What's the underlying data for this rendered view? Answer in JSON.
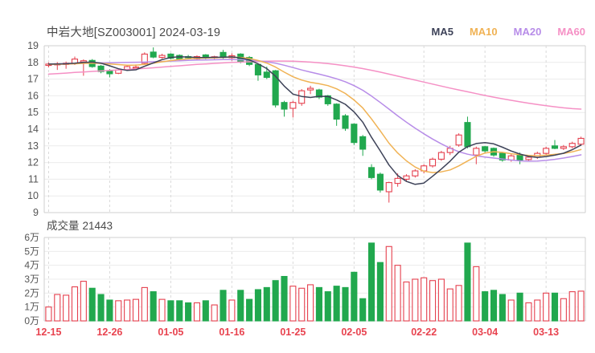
{
  "header": {
    "stock_title": "中岩大地[SZ003001]",
    "date": "2024-03-19"
  },
  "volume_panel": {
    "label": "成交量",
    "value": "21443"
  },
  "chart_data": {
    "type": "candlestick",
    "title": "中岩大地[SZ003001] 2024-03-19",
    "legend": [
      {
        "label": "MA5",
        "color": "#3d4258"
      },
      {
        "label": "MA10",
        "color": "#f0b254"
      },
      {
        "label": "MA20",
        "color": "#b78ce8"
      },
      {
        "label": "MA60",
        "color": "#f590c5"
      }
    ],
    "price_axis": {
      "min": 9,
      "max": 19,
      "tick_labels": [
        "19",
        "18",
        "17",
        "16",
        "15",
        "14",
        "13",
        "12",
        "11",
        "10",
        "9"
      ]
    },
    "volume_axis": {
      "max": 6,
      "tick_labels": [
        "6万",
        "5万",
        "4万",
        "3万",
        "2万",
        "1万",
        "0万"
      ]
    },
    "x_ticks": [
      {
        "index": 0,
        "label": "12-15"
      },
      {
        "index": 7,
        "label": "12-26"
      },
      {
        "index": 14,
        "label": "01-05"
      },
      {
        "index": 21,
        "label": "01-16"
      },
      {
        "index": 28,
        "label": "01-25"
      },
      {
        "index": 35,
        "label": "02-05"
      },
      {
        "index": 43,
        "label": "02-22"
      },
      {
        "index": 50,
        "label": "03-04"
      },
      {
        "index": 57,
        "label": "03-13"
      }
    ],
    "candles": [
      [
        17.82,
        18.0,
        17.7,
        17.9
      ],
      [
        17.86,
        18.02,
        17.55,
        17.92
      ],
      [
        17.88,
        18.05,
        17.62,
        17.95
      ],
      [
        17.92,
        18.35,
        17.85,
        18.2
      ],
      [
        18.02,
        18.18,
        17.2,
        18.1
      ],
      [
        18.12,
        18.2,
        17.68,
        17.75
      ],
      [
        17.78,
        17.85,
        17.35,
        17.45
      ],
      [
        17.5,
        17.6,
        17.1,
        17.32
      ],
      [
        17.35,
        17.65,
        17.3,
        17.55
      ],
      [
        17.58,
        17.85,
        17.5,
        17.75
      ],
      [
        17.7,
        17.88,
        17.6,
        17.72
      ],
      [
        17.95,
        18.6,
        17.9,
        18.5
      ],
      [
        18.62,
        18.9,
        18.25,
        18.32
      ],
      [
        18.3,
        18.52,
        18.22,
        18.42
      ],
      [
        18.5,
        18.55,
        18.18,
        18.25
      ],
      [
        18.42,
        18.48,
        18.1,
        18.2
      ],
      [
        18.35,
        18.45,
        18.18,
        18.28
      ],
      [
        18.22,
        18.42,
        18.15,
        18.35
      ],
      [
        18.45,
        18.5,
        18.2,
        18.28
      ],
      [
        18.28,
        18.4,
        18.2,
        18.34
      ],
      [
        18.6,
        18.75,
        18.22,
        18.3
      ],
      [
        18.28,
        18.55,
        18.1,
        18.4
      ],
      [
        18.5,
        18.55,
        17.95,
        18.05
      ],
      [
        18.3,
        18.38,
        17.78,
        17.88
      ],
      [
        17.88,
        17.95,
        16.9,
        17.25
      ],
      [
        17.42,
        17.75,
        17.0,
        17.1
      ],
      [
        17.5,
        17.55,
        15.3,
        15.45
      ],
      [
        15.6,
        15.7,
        14.75,
        15.2
      ],
      [
        15.25,
        15.7,
        14.7,
        15.6
      ],
      [
        15.55,
        16.4,
        15.4,
        16.3
      ],
      [
        16.35,
        16.6,
        16.1,
        16.45
      ],
      [
        16.35,
        16.42,
        15.8,
        15.92
      ],
      [
        16.0,
        16.05,
        15.4,
        15.52
      ],
      [
        15.5,
        15.55,
        14.2,
        14.6
      ],
      [
        14.8,
        14.9,
        13.9,
        14.05
      ],
      [
        14.3,
        14.35,
        13.05,
        13.2
      ],
      [
        13.55,
        13.65,
        12.4,
        12.8
      ],
      [
        11.7,
        11.9,
        11.0,
        11.1
      ],
      [
        11.3,
        11.4,
        10.2,
        10.35
      ],
      [
        10.25,
        10.85,
        9.6,
        10.8
      ],
      [
        10.75,
        11.35,
        10.55,
        11.05
      ],
      [
        11.0,
        11.3,
        10.85,
        11.2
      ],
      [
        11.2,
        11.6,
        11.1,
        11.5
      ],
      [
        11.5,
        11.9,
        11.35,
        11.8
      ],
      [
        11.8,
        12.3,
        11.7,
        12.2
      ],
      [
        12.2,
        12.7,
        12.1,
        12.6
      ],
      [
        12.6,
        13.0,
        12.45,
        12.85
      ],
      [
        13.05,
        13.75,
        12.95,
        13.65
      ],
      [
        14.4,
        14.75,
        12.85,
        12.95
      ],
      [
        12.45,
        12.95,
        11.9,
        12.85
      ],
      [
        12.95,
        13.0,
        12.6,
        12.7
      ],
      [
        12.85,
        12.9,
        12.35,
        12.45
      ],
      [
        12.55,
        12.6,
        12.05,
        12.15
      ],
      [
        12.15,
        12.5,
        12.05,
        12.4
      ],
      [
        12.45,
        12.6,
        11.9,
        12.15
      ],
      [
        12.18,
        12.4,
        12.08,
        12.32
      ],
      [
        12.32,
        12.65,
        12.22,
        12.55
      ],
      [
        12.55,
        12.95,
        12.45,
        12.85
      ],
      [
        13.0,
        13.35,
        12.8,
        12.85
      ],
      [
        12.85,
        13.05,
        12.75,
        12.95
      ],
      [
        12.95,
        13.25,
        12.85,
        13.15
      ],
      [
        13.1,
        13.55,
        13.0,
        13.45
      ]
    ],
    "volumes_wan": [
      1.0,
      1.9,
      1.85,
      2.45,
      2.85,
      2.35,
      1.9,
      1.5,
      1.45,
      1.5,
      1.55,
      2.4,
      2.1,
      1.55,
      1.45,
      1.45,
      1.3,
      1.3,
      1.45,
      1.15,
      2.2,
      1.5,
      2.2,
      1.55,
      2.25,
      2.4,
      2.9,
      3.2,
      2.5,
      2.35,
      2.6,
      2.4,
      2.1,
      2.5,
      2.4,
      3.5,
      1.6,
      5.6,
      4.2,
      5.35,
      4.0,
      2.8,
      3.0,
      3.1,
      2.9,
      3.0,
      2.3,
      2.55,
      5.6,
      3.9,
      2.1,
      2.2,
      1.9,
      1.5,
      2.0,
      1.3,
      1.5,
      2.0,
      2.0,
      1.6,
      2.1,
      2.14
    ],
    "ma5": [
      17.9,
      17.91,
      17.92,
      17.95,
      18.0,
      18.02,
      17.95,
      17.8,
      17.62,
      17.52,
      17.56,
      17.77,
      17.97,
      18.17,
      18.3,
      18.34,
      18.32,
      18.3,
      18.29,
      18.31,
      18.31,
      18.33,
      18.27,
      18.15,
      17.92,
      17.63,
      17.17,
      16.58,
      16.1,
      15.96,
      15.9,
      15.97,
      15.96,
      15.75,
      15.49,
      15.04,
      14.42,
      13.51,
      12.7,
      11.85,
      11.22,
      10.87,
      10.69,
      10.77,
      11.18,
      11.61,
      12.08,
      12.62,
      12.95,
      13.14,
      13.19,
      13.12,
      12.92,
      12.69,
      12.51,
      12.37,
      12.31,
      12.36,
      12.44,
      12.56,
      12.77,
      13.05
    ],
    "ma10": [
      17.88,
      17.89,
      17.9,
      17.92,
      17.94,
      17.95,
      17.94,
      17.91,
      17.87,
      17.83,
      17.83,
      17.88,
      17.95,
      18.04,
      18.11,
      18.17,
      18.21,
      18.24,
      18.26,
      18.28,
      18.3,
      18.32,
      18.3,
      18.24,
      18.12,
      17.96,
      17.72,
      17.42,
      17.14,
      16.94,
      16.81,
      16.72,
      16.61,
      16.42,
      16.14,
      15.75,
      15.27,
      14.61,
      13.9,
      13.16,
      12.57,
      12.1,
      11.73,
      11.48,
      11.4,
      11.44,
      11.56,
      11.8,
      12.09,
      12.37,
      12.57,
      12.65,
      12.61,
      12.53,
      12.47,
      12.43,
      12.41,
      12.44,
      12.49,
      12.55,
      12.64,
      12.78
    ],
    "ma20": [
      17.9,
      17.91,
      17.92,
      17.93,
      17.95,
      17.96,
      17.97,
      17.98,
      17.99,
      18.0,
      18.01,
      18.02,
      18.04,
      18.06,
      18.08,
      18.1,
      18.12,
      18.14,
      18.15,
      18.16,
      18.17,
      18.17,
      18.16,
      18.14,
      18.1,
      18.04,
      17.95,
      17.83,
      17.69,
      17.55,
      17.42,
      17.3,
      17.17,
      17.02,
      16.84,
      16.61,
      16.33,
      15.98,
      15.6,
      15.2,
      14.8,
      14.42,
      14.06,
      13.72,
      13.41,
      13.12,
      12.86,
      12.65,
      12.5,
      12.4,
      12.33,
      12.27,
      12.21,
      12.15,
      12.1,
      12.08,
      12.09,
      12.13,
      12.19,
      12.27,
      12.36,
      12.46
    ],
    "ma60": [
      17.3,
      17.33,
      17.36,
      17.4,
      17.43,
      17.46,
      17.49,
      17.52,
      17.55,
      17.58,
      17.61,
      17.64,
      17.68,
      17.72,
      17.76,
      17.8,
      17.84,
      17.88,
      17.91,
      17.94,
      17.97,
      18.0,
      18.02,
      18.04,
      18.06,
      18.07,
      18.08,
      18.08,
      18.07,
      18.05,
      18.02,
      17.98,
      17.93,
      17.87,
      17.8,
      17.72,
      17.63,
      17.53,
      17.42,
      17.3,
      17.18,
      17.06,
      16.94,
      16.82,
      16.7,
      16.58,
      16.46,
      16.35,
      16.24,
      16.13,
      16.02,
      15.92,
      15.82,
      15.73,
      15.64,
      15.56,
      15.48,
      15.41,
      15.34,
      15.28,
      15.23,
      15.2
    ],
    "colors": {
      "up": "#e5404e",
      "down": "#21a84e",
      "ma5": "#3d4258",
      "ma10": "#f0b254",
      "ma20": "#b78ce8",
      "ma60": "#f590c5",
      "grid": "#ececec",
      "grid_dash": "#d9d9d9",
      "border": "#cfcfcf",
      "axis_label": "#555555",
      "date_label": "#e8434f",
      "title": "#4a4a4a"
    }
  }
}
